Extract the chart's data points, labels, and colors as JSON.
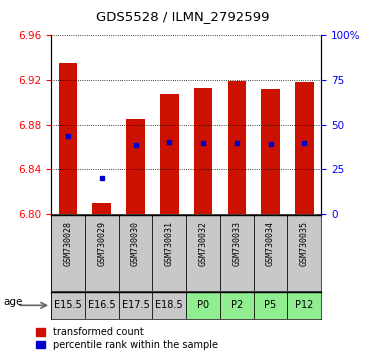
{
  "title": "GDS5528 / ILMN_2792599",
  "samples": [
    "GSM730028",
    "GSM730029",
    "GSM730030",
    "GSM730031",
    "GSM730032",
    "GSM730033",
    "GSM730034",
    "GSM730035"
  ],
  "ages": [
    "E15.5",
    "E16.5",
    "E17.5",
    "E18.5",
    "P0",
    "P2",
    "P5",
    "P12"
  ],
  "age_colors_e": "#c8c8c8",
  "age_colors_p": "#90ee90",
  "transformed_counts": [
    6.935,
    6.81,
    6.885,
    6.908,
    6.913,
    6.919,
    6.912,
    6.918
  ],
  "percentile_values": [
    6.87,
    6.832,
    6.862,
    6.865,
    6.864,
    6.864,
    6.863,
    6.864
  ],
  "bar_bottom": 6.8,
  "ylim": [
    6.8,
    6.96
  ],
  "yticks_left": [
    6.8,
    6.84,
    6.88,
    6.92,
    6.96
  ],
  "yticks_right_pct": [
    0,
    25,
    50,
    75,
    100
  ],
  "bar_color": "#cc1100",
  "dot_color": "#0000cc",
  "bar_width": 0.55,
  "legend_red_label": "transformed count",
  "legend_blue_label": "percentile rank within the sample",
  "age_label": "age",
  "sample_bg": "#c8c8c8",
  "title_fontsize": 9.5
}
